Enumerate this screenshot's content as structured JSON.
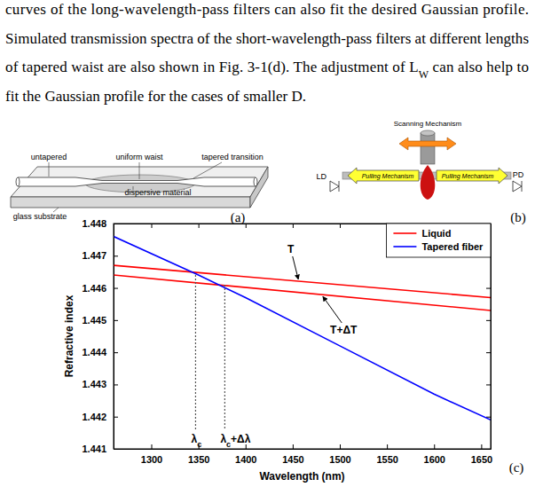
{
  "text": {
    "lines": [
      [
        {
          "t": "curves of the long-wavelength-pass filters can also fit the desired Gaussian profile."
        }
      ],
      [
        {
          "t": "Simulated transmission spectra of the short-wavelength-pass filters at different lengths"
        }
      ],
      [
        {
          "t": "of tapered waist are also shown in Fig. 3-1(d). The adjustment of L"
        },
        {
          "t": "W",
          "sub": true
        },
        {
          "t": " can also help to"
        }
      ],
      [
        {
          "t": "fit the Gaussian profile for the cases of smaller D."
        }
      ]
    ]
  },
  "figure_a": {
    "untapered": "untapered",
    "uniform_waist": "uniform waist",
    "tapered_transition": "tapered transition",
    "dispersive_material": "dispersive material",
    "glass_substrate": "glass substrate",
    "panel": "(a)"
  },
  "figure_b": {
    "source": "LD",
    "detector": "PD",
    "scanning": "Scanning Mechanism",
    "pulling": [
      "Pulling Mechanism",
      "Pulling Mechanism"
    ],
    "panel": "(b)"
  },
  "chart_data": {
    "type": "line",
    "panel": "(c)",
    "x_label": "Wavelength (nm)",
    "y_label": "Refractive index",
    "xlim": [
      1260,
      1660
    ],
    "ylim": [
      1.441,
      1.448
    ],
    "xticks": [
      1300,
      1350,
      1400,
      1450,
      1500,
      1550,
      1600,
      1650
    ],
    "yticks": [
      1.441,
      1.442,
      1.443,
      1.444,
      1.445,
      1.446,
      1.447,
      1.448
    ],
    "legend": "upper right",
    "series": [
      {
        "name": "Liquid",
        "color": "#ff0000",
        "lines": [
          {
            "label": "T",
            "x": [
              1260,
              1660
            ],
            "values": [
              1.4467,
              1.4457
            ]
          },
          {
            "label": "T+ΔT",
            "x": [
              1260,
              1660
            ],
            "values": [
              1.4464,
              1.4453
            ]
          }
        ]
      },
      {
        "name": "Tapered fiber",
        "color": "#0000ff",
        "lines": [
          {
            "x": [
              1260,
              1350,
              1400,
              1500,
              1600,
              1660
            ],
            "values": [
              1.4476,
              1.4464,
              1.4457,
              1.4442,
              1.4427,
              1.4419
            ]
          }
        ]
      }
    ],
    "markers": [
      {
        "x": 1347,
        "y": 1.4464,
        "label": "λ",
        "sub": "c",
        "suffix": ""
      },
      {
        "x": 1378,
        "y": 1.4461,
        "label": "λ",
        "sub": "c",
        "suffix": "+Δλ"
      }
    ]
  }
}
